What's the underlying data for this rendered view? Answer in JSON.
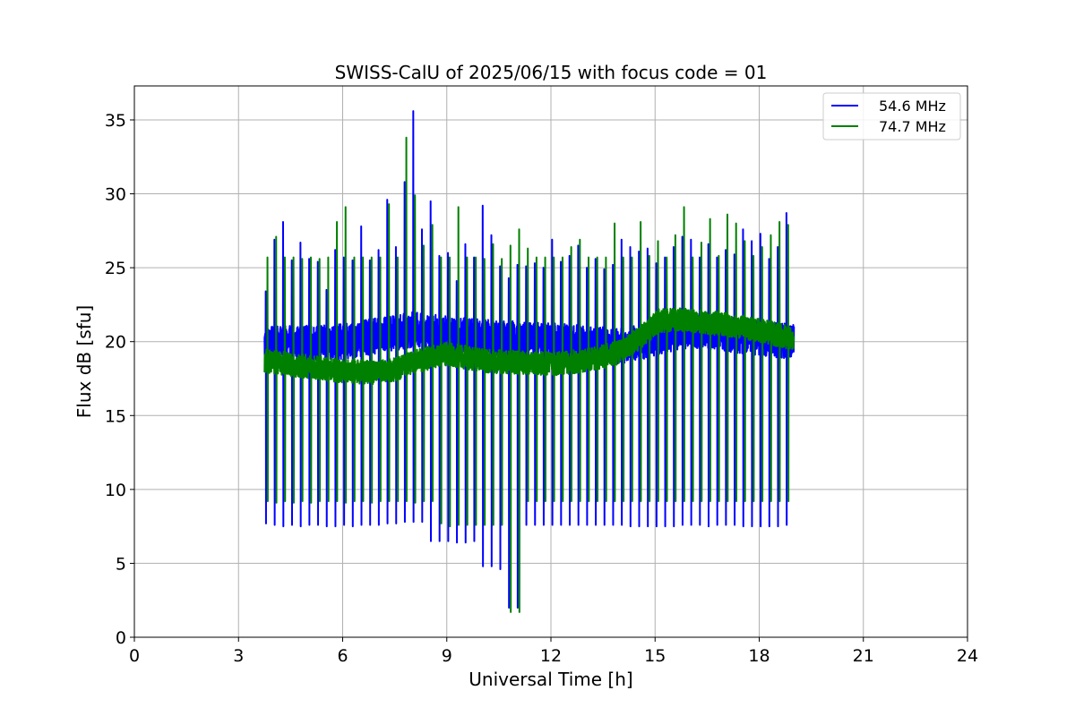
{
  "chart_data": {
    "type": "line",
    "title": "SWISS-CalU of 2025/06/15 with focus code = 01",
    "xlabel": "Universal Time [h]",
    "ylabel": "Flux dB [sfu]",
    "xlim": [
      0,
      24
    ],
    "ylim": [
      0,
      37.3
    ],
    "xticks": [
      0,
      3,
      6,
      9,
      12,
      15,
      18,
      21,
      24
    ],
    "yticks": [
      0,
      5,
      10,
      15,
      20,
      25,
      30,
      35
    ],
    "grid": true,
    "legend_position": "top-right",
    "x_range_data": [
      3.75,
      19.0
    ],
    "series": [
      {
        "name": "54.6 MHz",
        "color": "#0000ff",
        "baseline": [
          [
            3.75,
            19.8
          ],
          [
            6.0,
            20.0
          ],
          [
            8.0,
            20.8
          ],
          [
            10.0,
            20.3
          ],
          [
            12.0,
            20.1
          ],
          [
            14.0,
            19.7
          ],
          [
            15.0,
            20.2
          ],
          [
            16.0,
            20.8
          ],
          [
            17.5,
            20.4
          ],
          [
            19.0,
            20.0
          ]
        ],
        "baseline_noise": 1.2,
        "calibration_times": [
          3.78,
          4.03,
          4.28,
          4.53,
          4.78,
          5.03,
          5.28,
          5.53,
          5.78,
          6.03,
          6.28,
          6.53,
          6.78,
          7.03,
          7.28,
          7.53,
          7.78,
          8.03,
          8.28,
          8.53,
          8.78,
          9.03,
          9.28,
          9.53,
          9.78,
          10.03,
          10.28,
          10.53,
          10.78,
          11.03,
          11.28,
          11.53,
          11.78,
          12.03,
          12.28,
          12.53,
          12.78,
          13.03,
          13.28,
          13.53,
          13.78,
          14.03,
          14.28,
          14.53,
          14.78,
          15.03,
          15.28,
          15.53,
          15.78,
          16.03,
          16.28,
          16.53,
          16.78,
          17.03,
          17.28,
          17.53,
          17.78,
          18.03,
          18.28,
          18.53,
          18.78
        ],
        "dip_values": [
          7.7,
          7.6,
          7.5,
          7.6,
          7.5,
          7.6,
          7.6,
          7.5,
          7.5,
          7.6,
          7.5,
          7.6,
          7.6,
          7.6,
          7.7,
          7.7,
          7.8,
          7.8,
          7.8,
          6.5,
          6.5,
          6.5,
          6.4,
          6.4,
          6.5,
          4.8,
          4.8,
          4.6,
          2.0,
          2.0,
          7.6,
          7.6,
          7.6,
          7.6,
          7.6,
          7.6,
          7.6,
          7.6,
          7.6,
          7.6,
          7.6,
          7.6,
          7.5,
          7.5,
          7.5,
          7.5,
          7.5,
          7.5,
          7.6,
          7.6,
          7.6,
          7.5,
          7.6,
          7.6,
          7.6,
          7.5,
          7.5,
          7.5,
          7.5,
          7.5,
          7.6
        ],
        "spike_values": [
          23.4,
          26.9,
          28.1,
          25.5,
          26.7,
          25.6,
          25.4,
          23.5,
          26.2,
          25.7,
          25.5,
          27.8,
          25.5,
          26.2,
          29.6,
          26.4,
          30.8,
          35.6,
          27.6,
          29.5,
          25.8,
          26.0,
          24.1,
          26.6,
          25.7,
          29.2,
          27.2,
          25.1,
          24.3,
          25.2,
          25.1,
          25.3,
          25.0,
          26.9,
          25.4,
          25.8,
          26.5,
          25.0,
          25.6,
          24.9,
          25.2,
          26.9,
          26.4,
          26.1,
          26.3,
          25.3,
          25.7,
          26.4,
          27.1,
          26.9,
          25.7,
          26.6,
          25.7,
          26.2,
          25.9,
          27.6,
          26.8,
          27.3,
          25.6,
          26.4,
          28.7
        ]
      },
      {
        "name": "74.7 MHz",
        "color": "#008000",
        "baseline": [
          [
            3.75,
            18.7
          ],
          [
            5.0,
            18.3
          ],
          [
            6.0,
            18.0
          ],
          [
            7.0,
            17.9
          ],
          [
            7.5,
            18.1
          ],
          [
            8.0,
            18.6
          ],
          [
            9.0,
            19.2
          ],
          [
            10.0,
            18.7
          ],
          [
            11.0,
            18.6
          ],
          [
            12.0,
            18.5
          ],
          [
            13.0,
            18.7
          ],
          [
            14.0,
            19.3
          ],
          [
            14.6,
            20.3
          ],
          [
            15.1,
            21.4
          ],
          [
            15.6,
            21.5
          ],
          [
            16.5,
            21.3
          ],
          [
            17.5,
            21.0
          ],
          [
            18.3,
            20.6
          ],
          [
            19.0,
            20.2
          ]
        ],
        "baseline_noise": 0.8,
        "calibration_times": [
          3.83,
          4.08,
          4.33,
          4.58,
          4.83,
          5.08,
          5.33,
          5.58,
          5.83,
          6.08,
          6.33,
          6.58,
          6.83,
          7.08,
          7.33,
          7.58,
          7.83,
          8.08,
          8.33,
          8.58,
          8.83,
          9.08,
          9.33,
          9.58,
          9.83,
          10.08,
          10.33,
          10.58,
          10.83,
          11.08,
          11.33,
          11.58,
          11.83,
          12.08,
          12.33,
          12.58,
          12.83,
          13.08,
          13.33,
          13.58,
          13.83,
          14.08,
          14.33,
          14.58,
          14.83,
          15.08,
          15.33,
          15.58,
          15.83,
          16.08,
          16.33,
          16.58,
          16.83,
          17.08,
          17.33,
          17.58,
          17.83,
          18.08,
          18.33,
          18.58,
          18.83
        ],
        "dip_values": [
          9.2,
          9.1,
          9.2,
          9.1,
          9.2,
          9.1,
          9.2,
          9.2,
          9.2,
          9.1,
          9.2,
          9.2,
          9.1,
          9.2,
          9.2,
          9.2,
          9.2,
          9.1,
          9.2,
          9.2,
          7.7,
          7.5,
          7.6,
          7.6,
          7.6,
          7.6,
          7.6,
          7.6,
          1.7,
          1.7,
          9.2,
          9.2,
          9.2,
          9.2,
          9.2,
          9.2,
          9.2,
          9.2,
          9.2,
          9.2,
          9.2,
          9.2,
          9.2,
          9.2,
          9.2,
          9.2,
          9.2,
          9.2,
          9.2,
          9.2,
          9.2,
          9.2,
          9.2,
          9.2,
          9.2,
          9.2,
          9.2,
          9.2,
          9.2,
          9.2,
          9.2
        ],
        "spike_values": [
          25.7,
          27.1,
          25.7,
          25.7,
          25.6,
          25.7,
          25.6,
          25.7,
          28.1,
          29.1,
          25.7,
          25.7,
          25.7,
          25.7,
          29.3,
          25.7,
          33.8,
          29.9,
          26.5,
          27.9,
          25.7,
          25.7,
          29.1,
          25.7,
          25.7,
          25.6,
          26.6,
          25.6,
          26.5,
          27.6,
          26.3,
          25.7,
          25.7,
          25.7,
          25.7,
          26.4,
          26.9,
          25.7,
          25.7,
          25.7,
          28.0,
          25.7,
          25.7,
          28.1,
          25.8,
          26.8,
          25.7,
          27.2,
          29.1,
          25.7,
          26.7,
          28.3,
          25.8,
          28.6,
          28.0,
          26.8,
          25.8,
          26.4,
          27.2,
          28.1,
          27.9
        ]
      }
    ]
  }
}
